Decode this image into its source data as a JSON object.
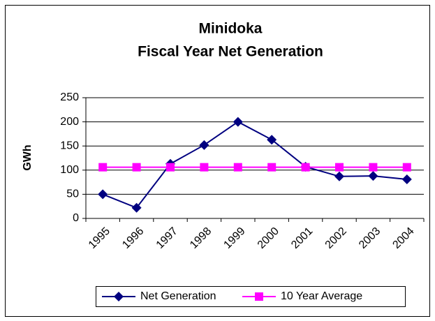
{
  "chart_data": {
    "type": "line",
    "title": [
      "Minidoka",
      "Fiscal Year Net Generation"
    ],
    "y_label": "GWh",
    "categories": [
      "1995",
      "1996",
      "1997",
      "1998",
      "1999",
      "2000",
      "2001",
      "2002",
      "2003",
      "2004"
    ],
    "series": [
      {
        "name": "Net Generation",
        "color": "#000080",
        "marker": "diamond",
        "values": [
          50,
          22,
          113,
          152,
          200,
          163,
          107,
          87,
          88,
          81
        ]
      },
      {
        "name": "10 Year Average",
        "color": "#ff00ff",
        "marker": "square",
        "values": [
          106,
          106,
          106,
          106,
          106,
          106,
          106,
          106,
          106,
          106
        ]
      }
    ],
    "ylim": [
      0,
      250
    ],
    "yticks": [
      0,
      50,
      100,
      150,
      200,
      250
    ],
    "grid": true,
    "legend": "bottom"
  }
}
